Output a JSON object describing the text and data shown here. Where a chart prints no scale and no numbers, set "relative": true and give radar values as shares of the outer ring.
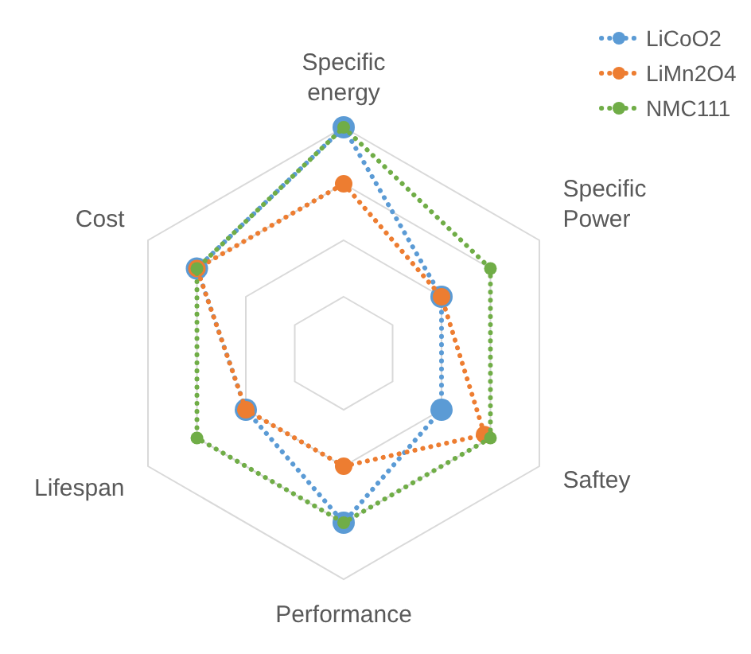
{
  "chart_data": {
    "type": "radar",
    "relative": true,
    "categories": [
      "Specific energy",
      "Specific Power",
      "Saftey",
      "Performance",
      "Lifespan",
      "Cost"
    ],
    "series": [
      {
        "name": "LiCoO2",
        "color": "#5b9bd5",
        "values": [
          1,
          0.5,
          0.5,
          0.75,
          0.5,
          0.75
        ]
      },
      {
        "name": "LiMn2O4",
        "color": "#ed7d31",
        "values": [
          0.75,
          0.5,
          0.72,
          0.5,
          0.5,
          0.75
        ]
      },
      {
        "name": "NMC111",
        "color": "#70ad47",
        "values": [
          1,
          0.75,
          0.75,
          0.75,
          0.75,
          0.75
        ]
      }
    ],
    "grid": true,
    "legend": "top right",
    "marker": "circle",
    "line_style": "dotted"
  }
}
